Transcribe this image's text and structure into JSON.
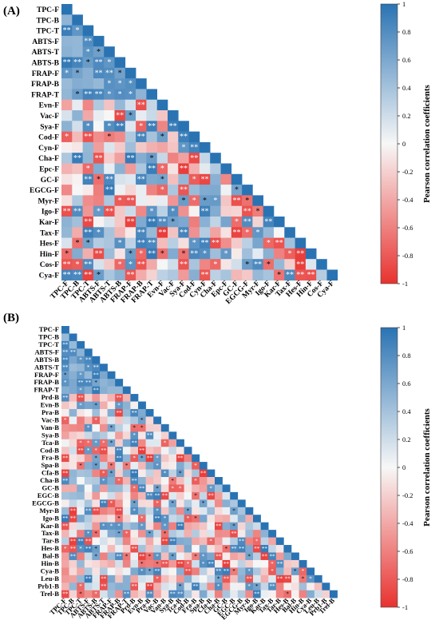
{
  "panels": [
    {
      "label": "(A)",
      "colorbar_title": "Pearson correlation coefficients"
    },
    {
      "label": "(B)",
      "colorbar_title": "Pearson correlation coefficients"
    }
  ],
  "colors": {
    "negative": "#e8322f",
    "zero": "#f7f7f7",
    "positive": "#2a73b3"
  },
  "chart_data": [
    {
      "type": "heatmap",
      "title": "",
      "variables": [
        "TPC-F",
        "TPC-B",
        "TPC-T",
        "ABTS-F",
        "ABTS-T",
        "ABTS-B",
        "FRAP-F",
        "FRAP-B",
        "FRAP-T",
        "Evn-F",
        "Vac-F",
        "Sya-F",
        "Cod-F",
        "Cyn-F",
        "Cha-F",
        "Epc-F",
        "GC-F",
        "EGCG-F",
        "Myr-F",
        "Igo-F",
        "Kar-F",
        "Tax-F",
        "Hes-F",
        "Hin-F",
        "Cos-F",
        "Cya-F"
      ],
      "colorbar": {
        "label": "Pearson correlation coefficients",
        "range": [
          -1,
          1
        ],
        "ticks": [
          1,
          0.8,
          0.6,
          0.4,
          0.2,
          0,
          -0.2,
          -0.4,
          -0.6,
          -0.8,
          -1
        ]
      },
      "layout": "lower-triangle",
      "significance_marks": [
        "*",
        "**"
      ]
    },
    {
      "type": "heatmap",
      "title": "",
      "variables": [
        "TPC-F",
        "TPC-B",
        "TPC-T",
        "ABTS-F",
        "ABTS-B",
        "ABTS-T",
        "FRAP-F",
        "FRAP-B",
        "FRAP-T",
        "Prd-B",
        "Evn-B",
        "Pra-B",
        "Vac-B",
        "Van-B",
        "Sya-B",
        "Tca-B",
        "Cod-B",
        "Fra-B",
        "Spa-B",
        "Cfa-B",
        "Cha-B",
        "GC-B",
        "EGC-B",
        "EGCG-B",
        "Myr-B",
        "Igo-B",
        "Kar-B",
        "Tax-B",
        "Tar-B",
        "Hes-B",
        "Bal-B",
        "Hin-B",
        "Cya-B",
        "Leu-B",
        "Prb1-B",
        "Trel-B"
      ],
      "colorbar": {
        "label": "Pearson correlation coefficients",
        "range": [
          -1,
          1
        ],
        "ticks": [
          1,
          0.8,
          0.6,
          0.4,
          0.2,
          0,
          -0.2,
          -0.4,
          -0.6,
          -0.8,
          -1
        ]
      },
      "layout": "lower-triangle",
      "significance_marks": [
        "*",
        "**"
      ]
    }
  ]
}
